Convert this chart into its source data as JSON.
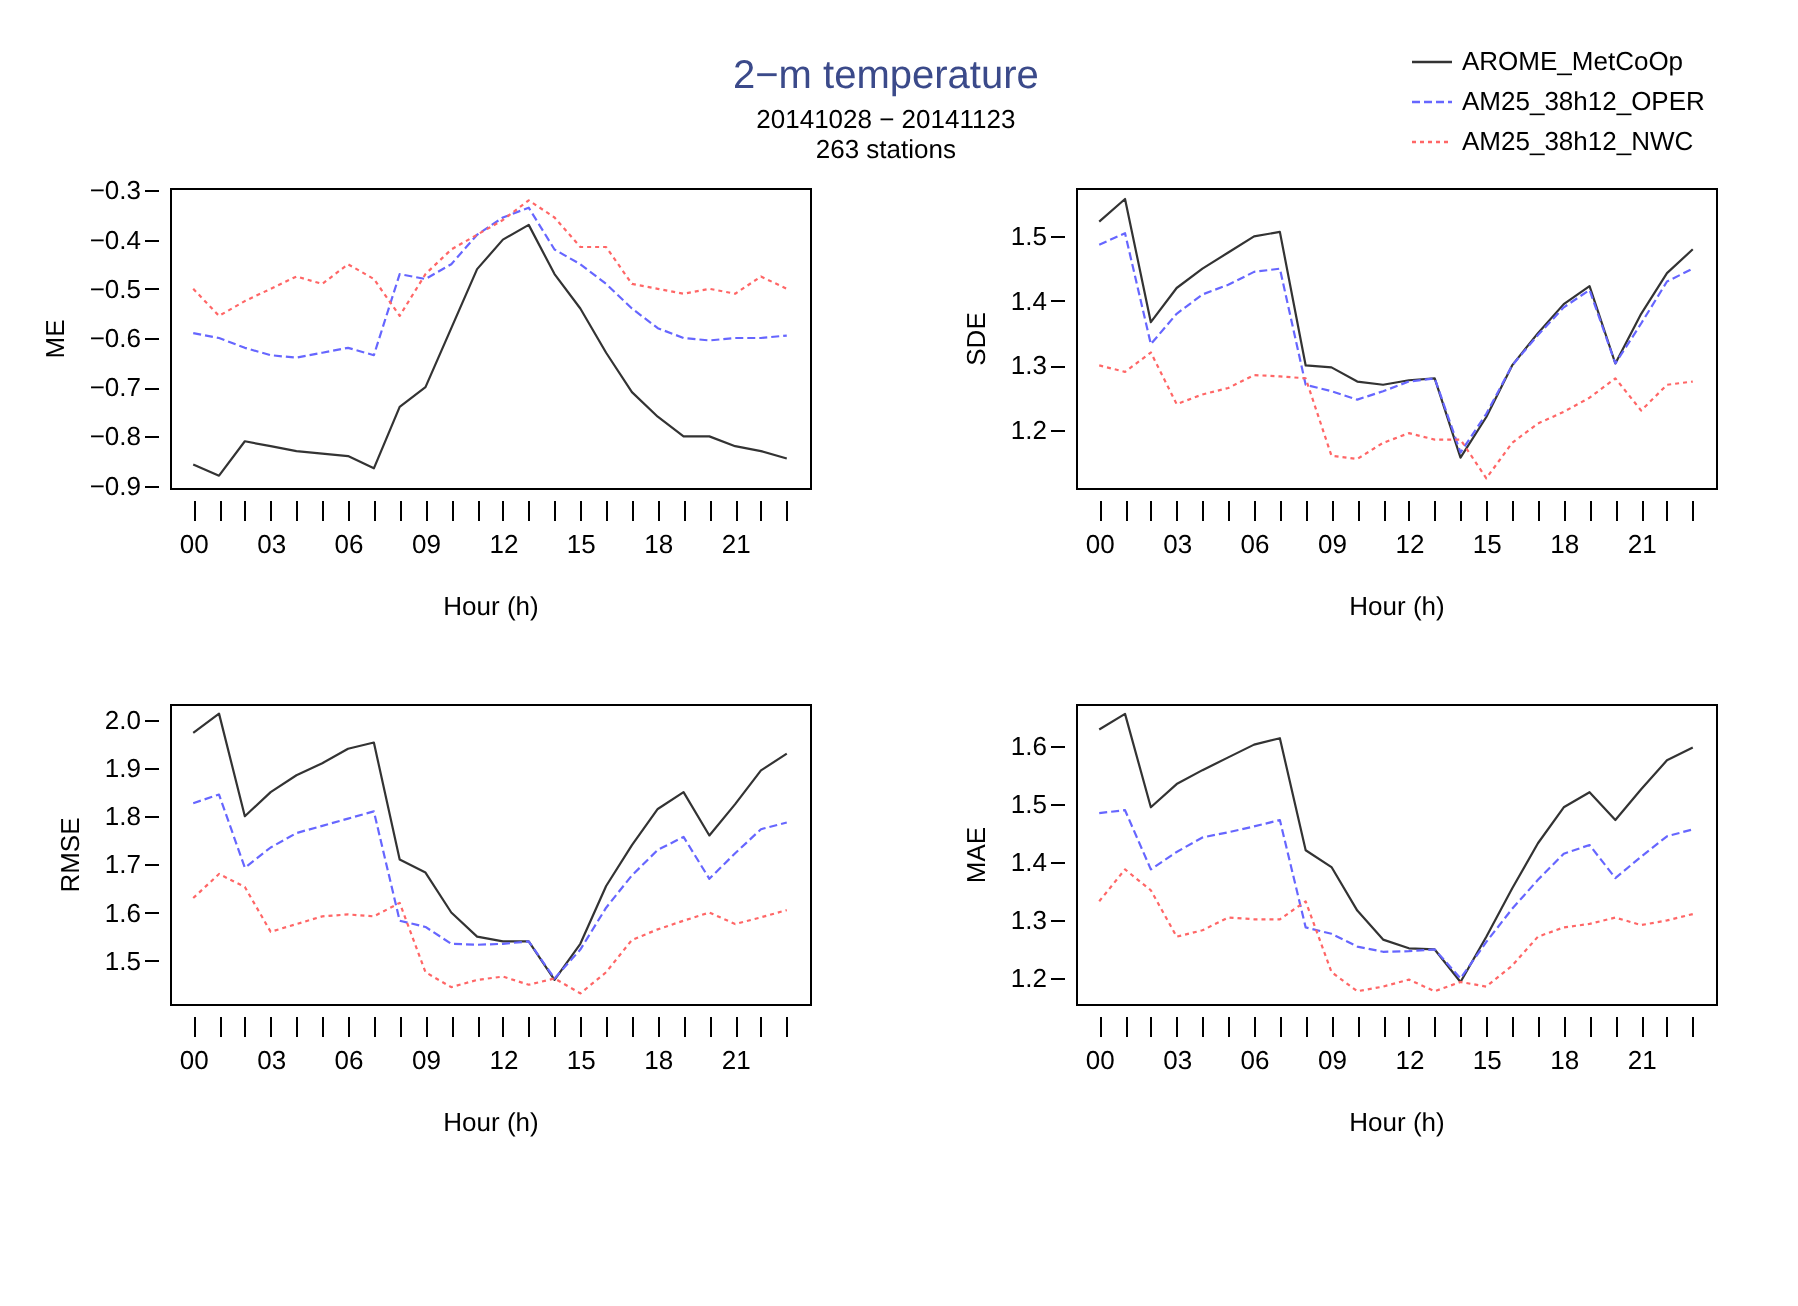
{
  "chart_data": [
    {
      "type": "line",
      "title": "2−m temperature",
      "subtitle": [
        "20141028 − 20141123",
        "263 stations"
      ],
      "xlabel": "Hour (h)",
      "ylabel": "ME",
      "grid": false,
      "legend": "top right",
      "x": [
        0,
        1,
        2,
        3,
        4,
        5,
        6,
        7,
        8,
        9,
        10,
        11,
        12,
        13,
        14,
        15,
        16,
        17,
        18,
        19,
        20,
        21,
        22,
        23
      ],
      "xlim": [
        -0.9,
        23.9
      ],
      "xticks": [
        {
          "value": 0,
          "label": "00"
        },
        {
          "value": 1,
          "label": null
        },
        {
          "value": 2,
          "label": null
        },
        {
          "value": 3,
          "label": "03"
        },
        {
          "value": 4,
          "label": null
        },
        {
          "value": 5,
          "label": null
        },
        {
          "value": 6,
          "label": "06"
        },
        {
          "value": 7,
          "label": null
        },
        {
          "value": 8,
          "label": null
        },
        {
          "value": 9,
          "label": "09"
        },
        {
          "value": 10,
          "label": null
        },
        {
          "value": 11,
          "label": null
        },
        {
          "value": 12,
          "label": "12"
        },
        {
          "value": 13,
          "label": null
        },
        {
          "value": 14,
          "label": null
        },
        {
          "value": 15,
          "label": "15"
        },
        {
          "value": 16,
          "label": null
        },
        {
          "value": 17,
          "label": null
        },
        {
          "value": 18,
          "label": "18"
        },
        {
          "value": 19,
          "label": null
        },
        {
          "value": 20,
          "label": null
        },
        {
          "value": 21,
          "label": "21"
        },
        {
          "value": 22,
          "label": null
        },
        {
          "value": 23,
          "label": null
        }
      ],
      "ylim": [
        -0.905,
        -0.295
      ],
      "yticks": [
        -0.9,
        -0.8,
        -0.7,
        -0.6,
        -0.5,
        -0.4,
        -0.3
      ],
      "series": [
        {
          "name": "AROME_MetCoOp",
          "color": "#333333",
          "line_style": "solid",
          "values": [
            -0.857,
            -0.88,
            -0.81,
            -0.82,
            -0.83,
            -0.835,
            -0.84,
            -0.865,
            -0.74,
            -0.7,
            -0.58,
            -0.46,
            -0.4,
            -0.37,
            -0.47,
            -0.54,
            -0.63,
            -0.71,
            -0.76,
            -0.8,
            -0.8,
            -0.82,
            -0.83,
            -0.845
          ]
        },
        {
          "name": "AM25_38h12_OPER",
          "color": "#6666ff",
          "line_style": "dashed",
          "values": [
            -0.59,
            -0.6,
            -0.62,
            -0.635,
            -0.64,
            -0.63,
            -0.62,
            -0.635,
            -0.47,
            -0.48,
            -0.45,
            -0.39,
            -0.355,
            -0.335,
            -0.42,
            -0.45,
            -0.49,
            -0.54,
            -0.58,
            -0.6,
            -0.605,
            -0.6,
            -0.6,
            -0.595
          ]
        },
        {
          "name": "AM25_38h12_NWC",
          "color": "#ff6666",
          "line_style": "dotted",
          "values": [
            -0.5,
            -0.555,
            -0.525,
            -0.5,
            -0.475,
            -0.49,
            -0.45,
            -0.48,
            -0.555,
            -0.47,
            -0.42,
            -0.39,
            -0.36,
            -0.32,
            -0.355,
            -0.415,
            -0.415,
            -0.49,
            -0.5,
            -0.51,
            -0.5,
            -0.51,
            -0.475,
            -0.5
          ]
        }
      ]
    },
    {
      "type": "line",
      "xlabel": "Hour (h)",
      "ylabel": "SDE",
      "grid": false,
      "x": [
        0,
        1,
        2,
        3,
        4,
        5,
        6,
        7,
        8,
        9,
        10,
        11,
        12,
        13,
        14,
        15,
        16,
        17,
        18,
        19,
        20,
        21,
        22,
        23
      ],
      "xlim": [
        -0.9,
        23.9
      ],
      "xticks": [
        {
          "value": 0,
          "label": "00"
        },
        {
          "value": 1,
          "label": null
        },
        {
          "value": 2,
          "label": null
        },
        {
          "value": 3,
          "label": "03"
        },
        {
          "value": 4,
          "label": null
        },
        {
          "value": 5,
          "label": null
        },
        {
          "value": 6,
          "label": "06"
        },
        {
          "value": 7,
          "label": null
        },
        {
          "value": 8,
          "label": null
        },
        {
          "value": 9,
          "label": "09"
        },
        {
          "value": 10,
          "label": null
        },
        {
          "value": 11,
          "label": null
        },
        {
          "value": 12,
          "label": "12"
        },
        {
          "value": 13,
          "label": null
        },
        {
          "value": 14,
          "label": null
        },
        {
          "value": 15,
          "label": "15"
        },
        {
          "value": 16,
          "label": null
        },
        {
          "value": 17,
          "label": null
        },
        {
          "value": 18,
          "label": "18"
        },
        {
          "value": 19,
          "label": null
        },
        {
          "value": 20,
          "label": null
        },
        {
          "value": 21,
          "label": "21"
        },
        {
          "value": 22,
          "label": null
        },
        {
          "value": 23,
          "label": null
        }
      ],
      "ylim": [
        1.11,
        1.575
      ],
      "yticks": [
        1.2,
        1.3,
        1.4,
        1.5
      ],
      "series": [
        {
          "color": "#333333",
          "line_style": "solid",
          "values": [
            1.523,
            1.558,
            1.367,
            1.42,
            1.45,
            1.475,
            1.5,
            1.507,
            1.3,
            1.297,
            1.275,
            1.27,
            1.277,
            1.28,
            1.157,
            1.22,
            1.3,
            1.35,
            1.395,
            1.423,
            1.303,
            1.38,
            1.443,
            1.48
          ]
        },
        {
          "color": "#6666ff",
          "line_style": "dashed",
          "values": [
            1.487,
            1.505,
            1.333,
            1.38,
            1.41,
            1.425,
            1.445,
            1.45,
            1.27,
            1.26,
            1.247,
            1.26,
            1.275,
            1.28,
            1.165,
            1.225,
            1.3,
            1.347,
            1.39,
            1.417,
            1.303,
            1.365,
            1.43,
            1.45
          ]
        },
        {
          "color": "#ff6666",
          "line_style": "dotted",
          "values": [
            1.3,
            1.29,
            1.32,
            1.24,
            1.255,
            1.265,
            1.285,
            1.283,
            1.28,
            1.16,
            1.155,
            1.18,
            1.195,
            1.185,
            1.185,
            1.125,
            1.18,
            1.21,
            1.228,
            1.25,
            1.28,
            1.23,
            1.27,
            1.275
          ]
        }
      ]
    },
    {
      "type": "line",
      "xlabel": "Hour (h)",
      "ylabel": "RMSE",
      "grid": false,
      "x": [
        0,
        1,
        2,
        3,
        4,
        5,
        6,
        7,
        8,
        9,
        10,
        11,
        12,
        13,
        14,
        15,
        16,
        17,
        18,
        19,
        20,
        21,
        22,
        23
      ],
      "xlim": [
        -0.9,
        23.9
      ],
      "xticks": [
        {
          "value": 0,
          "label": "00"
        },
        {
          "value": 1,
          "label": null
        },
        {
          "value": 2,
          "label": null
        },
        {
          "value": 3,
          "label": "03"
        },
        {
          "value": 4,
          "label": null
        },
        {
          "value": 5,
          "label": null
        },
        {
          "value": 6,
          "label": "06"
        },
        {
          "value": 7,
          "label": null
        },
        {
          "value": 8,
          "label": null
        },
        {
          "value": 9,
          "label": "09"
        },
        {
          "value": 10,
          "label": null
        },
        {
          "value": 11,
          "label": null
        },
        {
          "value": 12,
          "label": "12"
        },
        {
          "value": 13,
          "label": null
        },
        {
          "value": 14,
          "label": null
        },
        {
          "value": 15,
          "label": "15"
        },
        {
          "value": 16,
          "label": null
        },
        {
          "value": 17,
          "label": null
        },
        {
          "value": 18,
          "label": "18"
        },
        {
          "value": 19,
          "label": null
        },
        {
          "value": 20,
          "label": null
        },
        {
          "value": 21,
          "label": "21"
        },
        {
          "value": 22,
          "label": null
        },
        {
          "value": 23,
          "label": null
        }
      ],
      "ylim": [
        1.41,
        2.033
      ],
      "yticks": [
        {
          "value": 1.5,
          "label": "1.5"
        },
        {
          "value": 1.6,
          "label": "1.6"
        },
        {
          "value": 1.7,
          "label": "1.7"
        },
        {
          "value": 1.8,
          "label": "1.8"
        },
        {
          "value": 1.9,
          "label": "1.9"
        },
        {
          "value": 2.0,
          "label": "2.0"
        }
      ],
      "series": [
        {
          "color": "#333333",
          "line_style": "solid",
          "values": [
            1.973,
            2.013,
            1.8,
            1.85,
            1.885,
            1.91,
            1.94,
            1.953,
            1.71,
            1.683,
            1.6,
            1.55,
            1.54,
            1.54,
            1.46,
            1.535,
            1.655,
            1.74,
            1.815,
            1.85,
            1.76,
            1.825,
            1.895,
            1.93
          ]
        },
        {
          "color": "#6666ff",
          "line_style": "dashed",
          "values": [
            1.827,
            1.845,
            1.693,
            1.735,
            1.765,
            1.78,
            1.795,
            1.81,
            1.583,
            1.57,
            1.535,
            1.533,
            1.535,
            1.54,
            1.463,
            1.523,
            1.61,
            1.677,
            1.73,
            1.757,
            1.67,
            1.723,
            1.773,
            1.787
          ]
        },
        {
          "color": "#ff6666",
          "line_style": "dotted",
          "values": [
            1.63,
            1.68,
            1.653,
            1.56,
            1.576,
            1.592,
            1.596,
            1.592,
            1.62,
            1.476,
            1.445,
            1.46,
            1.467,
            1.45,
            1.463,
            1.432,
            1.476,
            1.543,
            1.565,
            1.583,
            1.6,
            1.576,
            1.59,
            1.605
          ]
        }
      ]
    },
    {
      "type": "line",
      "xlabel": "Hour (h)",
      "ylabel": "MAE",
      "grid": false,
      "x": [
        0,
        1,
        2,
        3,
        4,
        5,
        6,
        7,
        8,
        9,
        10,
        11,
        12,
        13,
        14,
        15,
        16,
        17,
        18,
        19,
        20,
        21,
        22,
        23
      ],
      "xlim": [
        -0.9,
        23.9
      ],
      "xticks": [
        {
          "value": 0,
          "label": "00"
        },
        {
          "value": 1,
          "label": null
        },
        {
          "value": 2,
          "label": null
        },
        {
          "value": 3,
          "label": "03"
        },
        {
          "value": 4,
          "label": null
        },
        {
          "value": 5,
          "label": null
        },
        {
          "value": 6,
          "label": "06"
        },
        {
          "value": 7,
          "label": null
        },
        {
          "value": 8,
          "label": null
        },
        {
          "value": 9,
          "label": "09"
        },
        {
          "value": 10,
          "label": null
        },
        {
          "value": 11,
          "label": null
        },
        {
          "value": 12,
          "label": "12"
        },
        {
          "value": 13,
          "label": null
        },
        {
          "value": 14,
          "label": null
        },
        {
          "value": 15,
          "label": "15"
        },
        {
          "value": 16,
          "label": null
        },
        {
          "value": 17,
          "label": null
        },
        {
          "value": 18,
          "label": "18"
        },
        {
          "value": 19,
          "label": null
        },
        {
          "value": 20,
          "label": null
        },
        {
          "value": 21,
          "label": "21"
        },
        {
          "value": 22,
          "label": null
        },
        {
          "value": 23,
          "label": null
        }
      ],
      "ylim": [
        1.156,
        1.673
      ],
      "yticks": [
        1.2,
        1.3,
        1.4,
        1.5,
        1.6
      ],
      "series": [
        {
          "color": "#333333",
          "line_style": "solid",
          "values": [
            1.629,
            1.656,
            1.495,
            1.535,
            1.559,
            1.581,
            1.603,
            1.614,
            1.421,
            1.392,
            1.317,
            1.267,
            1.252,
            1.25,
            1.194,
            1.272,
            1.355,
            1.433,
            1.495,
            1.521,
            1.473,
            1.526,
            1.576,
            1.598
          ]
        },
        {
          "color": "#6666ff",
          "line_style": "dashed",
          "values": [
            1.485,
            1.49,
            1.388,
            1.418,
            1.443,
            1.452,
            1.462,
            1.473,
            1.288,
            1.277,
            1.255,
            1.246,
            1.247,
            1.25,
            1.2,
            1.263,
            1.32,
            1.37,
            1.415,
            1.43,
            1.373,
            1.41,
            1.445,
            1.457
          ]
        },
        {
          "color": "#ff6666",
          "line_style": "dotted",
          "values": [
            1.333,
            1.388,
            1.352,
            1.272,
            1.283,
            1.305,
            1.302,
            1.302,
            1.333,
            1.211,
            1.178,
            1.186,
            1.198,
            1.178,
            1.194,
            1.186,
            1.222,
            1.272,
            1.288,
            1.294,
            1.305,
            1.292,
            1.3,
            1.311
          ]
        }
      ]
    }
  ]
}
